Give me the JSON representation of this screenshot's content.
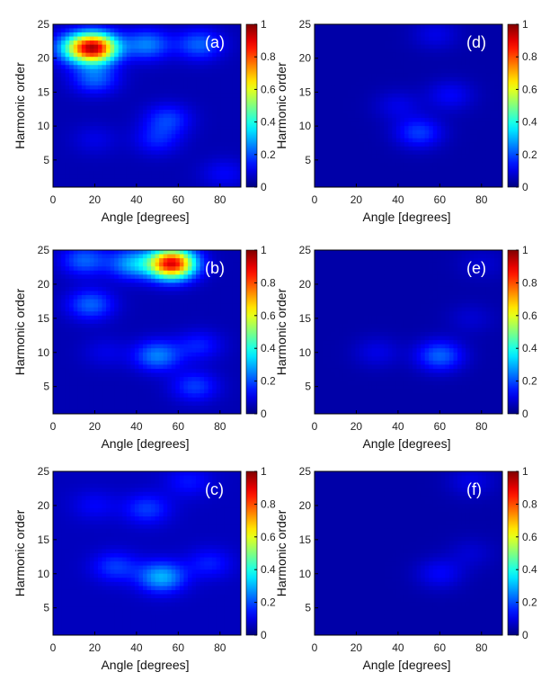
{
  "chart_data": [
    {
      "type": "heatmap",
      "panel_label": "(a)",
      "xlabel": "Angle [degrees]",
      "ylabel": "Harmonic order",
      "xlim": [
        0,
        90
      ],
      "ylim": [
        1,
        25
      ],
      "xticks": [
        0,
        20,
        40,
        60,
        80
      ],
      "yticks": [
        5,
        10,
        15,
        20,
        25
      ],
      "colorbar": {
        "min": 0,
        "max": 1,
        "ticks": [
          0,
          0.2,
          0.4,
          0.6,
          0.8,
          1
        ],
        "colormap": "jet"
      },
      "background": 0.05,
      "hotspots": [
        {
          "x": 20,
          "y": 21.5,
          "value": 0.85
        },
        {
          "x": 10,
          "y": 21.5,
          "value": 0.28
        },
        {
          "x": 45,
          "y": 22,
          "value": 0.25
        },
        {
          "x": 70,
          "y": 22,
          "value": 0.22
        },
        {
          "x": 20,
          "y": 17,
          "value": 0.22
        },
        {
          "x": 55,
          "y": 11,
          "value": 0.18
        },
        {
          "x": 50,
          "y": 8,
          "value": 0.15
        },
        {
          "x": 20,
          "y": 8,
          "value": 0.1
        },
        {
          "x": 82,
          "y": 3,
          "value": 0.12
        }
      ]
    },
    {
      "type": "heatmap",
      "panel_label": "(d)",
      "xlabel": "Angle [degrees]",
      "ylabel": "Harmonic order",
      "xlim": [
        0,
        90
      ],
      "ylim": [
        1,
        25
      ],
      "xticks": [
        0,
        20,
        40,
        60,
        80
      ],
      "yticks": [
        5,
        10,
        15,
        20,
        25
      ],
      "colorbar": {
        "min": 0,
        "max": 1,
        "ticks": [
          0,
          0.2,
          0.4,
          0.6,
          0.8,
          1
        ],
        "colormap": "jet"
      },
      "background": 0.04,
      "hotspots": [
        {
          "x": 50,
          "y": 9,
          "value": 0.18
        },
        {
          "x": 65,
          "y": 14.5,
          "value": 0.12
        },
        {
          "x": 40,
          "y": 13,
          "value": 0.1
        },
        {
          "x": 58,
          "y": 23.5,
          "value": 0.1
        }
      ]
    },
    {
      "type": "heatmap",
      "panel_label": "(b)",
      "xlabel": "Angle [degrees]",
      "ylabel": "Harmonic order",
      "xlim": [
        0,
        90
      ],
      "ylim": [
        1,
        25
      ],
      "xticks": [
        0,
        20,
        40,
        60,
        80
      ],
      "yticks": [
        5,
        10,
        15,
        20,
        25
      ],
      "colorbar": {
        "min": 0,
        "max": 1,
        "ticks": [
          0,
          0.2,
          0.4,
          0.6,
          0.8,
          1
        ],
        "colormap": "jet"
      },
      "background": 0.05,
      "hotspots": [
        {
          "x": 57,
          "y": 23,
          "value": 0.9
        },
        {
          "x": 38,
          "y": 23,
          "value": 0.28
        },
        {
          "x": 15,
          "y": 23.5,
          "value": 0.22
        },
        {
          "x": 18,
          "y": 17,
          "value": 0.22
        },
        {
          "x": 50,
          "y": 9.5,
          "value": 0.25
        },
        {
          "x": 70,
          "y": 11,
          "value": 0.15
        },
        {
          "x": 25,
          "y": 10,
          "value": 0.1
        },
        {
          "x": 68,
          "y": 5,
          "value": 0.18
        }
      ]
    },
    {
      "type": "heatmap",
      "panel_label": "(e)",
      "xlabel": "Angle [degrees]",
      "ylabel": "Harmonic order",
      "xlim": [
        0,
        90
      ],
      "ylim": [
        1,
        25
      ],
      "xticks": [
        0,
        20,
        40,
        60,
        80
      ],
      "yticks": [
        5,
        10,
        15,
        20,
        25
      ],
      "colorbar": {
        "min": 0,
        "max": 1,
        "ticks": [
          0,
          0.2,
          0.4,
          0.6,
          0.8,
          1
        ],
        "colormap": "jet"
      },
      "background": 0.04,
      "hotspots": [
        {
          "x": 60,
          "y": 9.5,
          "value": 0.22
        },
        {
          "x": 30,
          "y": 10,
          "value": 0.1
        },
        {
          "x": 75,
          "y": 15,
          "value": 0.08
        },
        {
          "x": 80,
          "y": 23,
          "value": 0.08
        }
      ]
    },
    {
      "type": "heatmap",
      "panel_label": "(c)",
      "xlabel": "Angle [degrees]",
      "ylabel": "Harmonic order",
      "xlim": [
        0,
        90
      ],
      "ylim": [
        1,
        25
      ],
      "xticks": [
        0,
        20,
        40,
        60,
        80
      ],
      "yticks": [
        5,
        10,
        15,
        20,
        25
      ],
      "colorbar": {
        "min": 0,
        "max": 1,
        "ticks": [
          0,
          0.2,
          0.4,
          0.6,
          0.8,
          1
        ],
        "colormap": "jet"
      },
      "background": 0.06,
      "hotspots": [
        {
          "x": 52,
          "y": 9.5,
          "value": 0.3
        },
        {
          "x": 30,
          "y": 11,
          "value": 0.18
        },
        {
          "x": 75,
          "y": 11.5,
          "value": 0.15
        },
        {
          "x": 45,
          "y": 19.5,
          "value": 0.18
        },
        {
          "x": 20,
          "y": 20,
          "value": 0.12
        },
        {
          "x": 65,
          "y": 23.5,
          "value": 0.14
        }
      ]
    },
    {
      "type": "heatmap",
      "panel_label": "(f)",
      "xlabel": "Angle [degrees]",
      "ylabel": "Harmonic order",
      "xlim": [
        0,
        90
      ],
      "ylim": [
        1,
        25
      ],
      "xticks": [
        0,
        20,
        40,
        60,
        80
      ],
      "yticks": [
        5,
        10,
        15,
        20,
        25
      ],
      "colorbar": {
        "min": 0,
        "max": 1,
        "ticks": [
          0,
          0.2,
          0.4,
          0.6,
          0.8,
          1
        ],
        "colormap": "jet"
      },
      "background": 0.04,
      "hotspots": [
        {
          "x": 60,
          "y": 10,
          "value": 0.12
        },
        {
          "x": 75,
          "y": 13,
          "value": 0.08
        },
        {
          "x": 75,
          "y": 23.5,
          "value": 0.1
        }
      ]
    }
  ]
}
